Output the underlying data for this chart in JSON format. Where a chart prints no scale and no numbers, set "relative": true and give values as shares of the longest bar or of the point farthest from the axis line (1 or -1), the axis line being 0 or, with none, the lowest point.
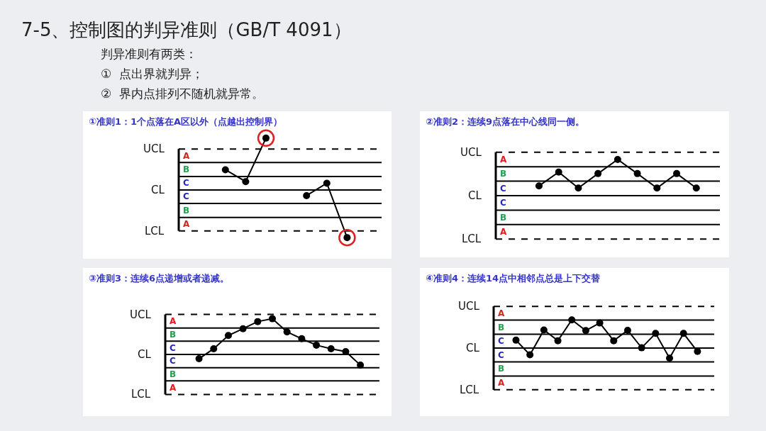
{
  "chart_data": [
    {
      "type": "other",
      "title": "7-5、控制图的判异准则（GB/T 4091）",
      "annotations": [
        "判异准则有两类：",
        "①  点出界就判异；",
        "②  界内点排列不随机就异常。"
      ]
    },
    {
      "type": "line",
      "title": "①准则1：1个点落在A区以外（点越出控制界）",
      "relative": true,
      "categories": [
        null,
        null,
        null,
        null,
        null,
        null,
        null
      ],
      "marker": "circle",
      "series": [
        {
          "color": "#000000",
          "values": [
            0.39,
            0.16,
            1,
            null,
            null,
            null,
            null
          ]
        },
        {
          "color": "#000000",
          "values": [
            null,
            null,
            null,
            null,
            -0.11,
            0.13,
            -0.92
          ]
        }
      ],
      "ref_lines": [
        {
          "axis": "y",
          "value": 0.79,
          "label": "UCL",
          "line_style": "dashed"
        },
        {
          "axis": "y",
          "value": 0.53,
          "line_style": "solid"
        },
        {
          "axis": "y",
          "value": 0.26,
          "line_style": "solid"
        },
        {
          "axis": "y",
          "value": 0,
          "label": "CL",
          "line_style": "solid"
        },
        {
          "axis": "y",
          "value": -0.26,
          "line_style": "solid"
        },
        {
          "axis": "y",
          "value": -0.53,
          "line_style": "solid"
        },
        {
          "axis": "y",
          "value": -0.79,
          "label": "LCL",
          "line_style": "dashed"
        }
      ],
      "annotations": [
        "A",
        "B",
        "C",
        "C",
        "B",
        "A"
      ]
    },
    {
      "type": "line",
      "title": "②准则2：连续9点落在中心线同一侧。",
      "relative": true,
      "categories": [
        null,
        null,
        null,
        null,
        null,
        null,
        null,
        null,
        null
      ],
      "marker": "circle",
      "series": [
        {
          "color": "#000000",
          "values": [
            0.27,
            0.65,
            0.21,
            0.61,
            1,
            0.61,
            0.21,
            0.61,
            0.21
          ]
        }
      ],
      "ref_lines": [
        {
          "axis": "y",
          "value": 1.2,
          "label": "UCL",
          "line_style": "dashed"
        },
        {
          "axis": "y",
          "value": 0.8,
          "line_style": "solid"
        },
        {
          "axis": "y",
          "value": 0.4,
          "line_style": "solid"
        },
        {
          "axis": "y",
          "value": 0,
          "label": "CL",
          "line_style": "solid"
        },
        {
          "axis": "y",
          "value": -0.4,
          "line_style": "solid"
        },
        {
          "axis": "y",
          "value": -0.8,
          "line_style": "solid"
        },
        {
          "axis": "y",
          "value": -1.2,
          "label": "LCL",
          "line_style": "dashed"
        }
      ],
      "annotations": [
        "A",
        "B",
        "C",
        "C",
        "B",
        "A"
      ]
    },
    {
      "type": "line",
      "title": "③准则3：连续6点递增或者递减。",
      "relative": true,
      "categories": [
        null,
        null,
        null,
        null,
        null,
        null,
        null,
        null,
        null,
        null,
        null,
        null
      ],
      "marker": "circle",
      "series": [
        {
          "color": "#000000",
          "values": [
            -0.12,
            0.16,
            0.53,
            0.72,
            0.92,
            1,
            0.63,
            0.44,
            0.26,
            0.16,
            0.08,
            -0.3
          ]
        }
      ],
      "ref_lines": [
        {
          "axis": "y",
          "value": 1.12,
          "label": "UCL",
          "line_style": "dashed"
        },
        {
          "axis": "y",
          "value": 0.74,
          "line_style": "solid"
        },
        {
          "axis": "y",
          "value": 0.37,
          "line_style": "solid"
        },
        {
          "axis": "y",
          "value": 0,
          "label": "CL",
          "line_style": "solid"
        },
        {
          "axis": "y",
          "value": -0.37,
          "line_style": "solid"
        },
        {
          "axis": "y",
          "value": -0.74,
          "line_style": "solid"
        },
        {
          "axis": "y",
          "value": -1.12,
          "label": "LCL",
          "line_style": "dashed"
        }
      ],
      "annotations": [
        "A",
        "B",
        "C",
        "C",
        "B",
        "A"
      ]
    },
    {
      "type": "line",
      "title": "④准则4：连续14点中相邻点总是上下交替",
      "relative": true,
      "categories": [
        null,
        null,
        null,
        null,
        null,
        null,
        null,
        null,
        null,
        null,
        null,
        null,
        null,
        null
      ],
      "marker": "circle",
      "series": [
        {
          "color": "#000000",
          "values": [
            0.28,
            -0.24,
            0.64,
            0.26,
            1,
            0.62,
            0.89,
            0.26,
            0.63,
            0.01,
            0.52,
            -0.36,
            0.52,
            -0.12
          ]
        }
      ],
      "ref_lines": [
        {
          "axis": "y",
          "value": 1.48,
          "label": "UCL",
          "line_style": "dashed"
        },
        {
          "axis": "y",
          "value": 0.99,
          "line_style": "solid"
        },
        {
          "axis": "y",
          "value": 0.49,
          "line_style": "solid"
        },
        {
          "axis": "y",
          "value": 0,
          "label": "CL",
          "line_style": "solid"
        },
        {
          "axis": "y",
          "value": -0.49,
          "line_style": "solid"
        },
        {
          "axis": "y",
          "value": -0.99,
          "line_style": "solid"
        },
        {
          "axis": "y",
          "value": -1.48,
          "label": "LCL",
          "line_style": "dashed"
        }
      ],
      "annotations": [
        "A",
        "B",
        "C",
        "C",
        "B",
        "A"
      ]
    }
  ]
}
